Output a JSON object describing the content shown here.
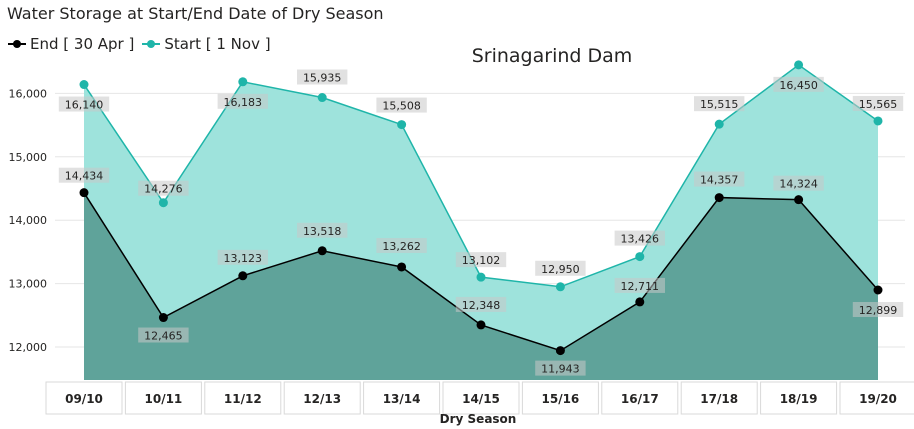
{
  "header": {
    "title": "Water Storage at Start/End Date of Dry Season"
  },
  "legend": {
    "items": [
      {
        "label": "End [ 30 Apr ]",
        "color": "#000000"
      },
      {
        "label": "Start [ 1 Nov ]",
        "color": "#1fb5a9"
      }
    ]
  },
  "chart_data": {
    "type": "area",
    "title": "Srinagarind Dam",
    "xlabel": "Dry  Season",
    "ylabel": "",
    "categories": [
      "09/10",
      "10/11",
      "11/12",
      "12/13",
      "13/14",
      "14/15",
      "15/16",
      "16/17",
      "17/18",
      "18/19",
      "19/20"
    ],
    "series": [
      {
        "name": "End [ 30 Apr ]",
        "color": "#000000",
        "fill": "#5fa39a",
        "values": [
          14434,
          12465,
          13123,
          13518,
          13262,
          12348,
          11943,
          12711,
          14357,
          14324,
          12899
        ]
      },
      {
        "name": "Start [ 1 Nov ]",
        "color": "#1fb5a9",
        "fill": "#9ee3dc",
        "values": [
          16140,
          14276,
          16183,
          15935,
          15508,
          13102,
          12950,
          13426,
          15515,
          16450,
          15565
        ]
      }
    ],
    "data_labels": {
      "End [ 30 Apr ]": [
        "14,434",
        "12,465",
        "13,123",
        "13,518",
        "13,262",
        "12,348",
        "11,943",
        "12,711",
        "14,357",
        "14,324",
        "12,899"
      ],
      "Start [ 1 Nov ]": [
        "16,140",
        "14,276",
        "16,183",
        "15,935",
        "15,508",
        "13,102",
        "12,950",
        "13,426",
        "15,515",
        "16,450",
        "15,565"
      ]
    },
    "yticks": [
      12000,
      13000,
      14000,
      15000,
      16000
    ],
    "ytick_labels": [
      "12,000",
      "13,000",
      "14,000",
      "15,000",
      "16,000"
    ],
    "ylim": [
      11500,
      16500
    ],
    "grid": true,
    "legend_position": "top-left"
  }
}
